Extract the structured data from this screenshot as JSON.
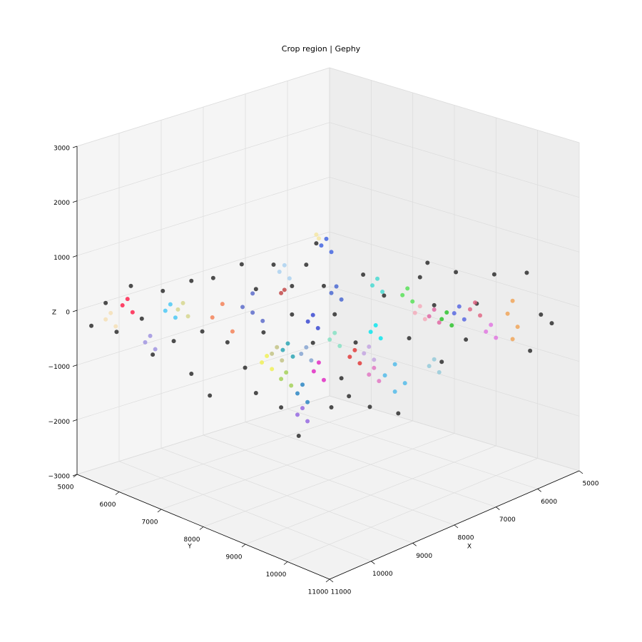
{
  "chart_data": {
    "type": "scatter3d",
    "title": "Crop region | Gephy",
    "xlabel": "X",
    "ylabel": "Y",
    "zlabel": "Z",
    "xlim": [
      5000,
      11000
    ],
    "ylim": [
      5000,
      11000
    ],
    "zlim": [
      -3000,
      3000
    ],
    "xticks": [
      5000,
      6000,
      7000,
      8000,
      9000,
      10000,
      11000
    ],
    "yticks": [
      5000,
      6000,
      7000,
      8000,
      9000,
      10000,
      11000
    ],
    "zticks": [
      {
        "value": -3000,
        "label": "−3000"
      },
      {
        "value": -2000,
        "label": "−2000"
      },
      {
        "value": -1000,
        "label": "−1000"
      },
      0,
      1000,
      2000,
      3000
    ],
    "grid": true,
    "series": [
      {
        "color": "#222222",
        "x": [
          10830,
          10660,
          10530,
          10360,
          10230,
          10100,
          9980,
          9850,
          9640,
          9640,
          9510,
          9420,
          9380,
          9210,
          9040,
          9000,
          8870,
          8780,
          8660,
          8570,
          8440,
          8360,
          8270,
          8190,
          8150,
          8060,
          7970,
          7850,
          7760,
          7680,
          7590,
          7510,
          7340,
          7170,
          7040,
          6910,
          6820,
          6740,
          6650,
          6480,
          6360,
          6230,
          6020,
          5630,
          5590,
          5460,
          5330,
          8870,
          8440,
          7930
        ],
        "y": [
          5170,
          5340,
          5470,
          5640,
          5770,
          5900,
          6020,
          6150,
          6360,
          6360,
          6490,
          6580,
          6620,
          6790,
          6960,
          7000,
          7130,
          7220,
          7340,
          7430,
          7560,
          7640,
          7730,
          7810,
          7850,
          7940,
          8030,
          8150,
          8240,
          8320,
          8410,
          8490,
          8660,
          8830,
          8960,
          9090,
          9180,
          9260,
          9350,
          9520,
          9640,
          9770,
          9980,
          10370,
          10410,
          10540,
          10670,
          7130,
          7560,
          8070
        ],
        "z": [
          -270,
          160,
          -360,
          490,
          -100,
          -750,
          420,
          -490,
          620,
          -1080,
          -300,
          -1470,
          680,
          -490,
          940,
          -950,
          -1410,
          -300,
          940,
          -1670,
          550,
          -2190,
          940,
          -490,
          1330,
          550,
          -1670,
          -1140,
          -1470,
          -490,
          750,
          -1670,
          360,
          -1800,
          -430,
          680,
          940,
          160,
          -880,
          750,
          -490,
          160,
          680,
          680,
          -750,
          -100,
          -270,
          490,
          30,
          30
        ]
      },
      {
        "color": "#f5deb3",
        "x": [
          10600,
          10660,
          10540
        ],
        "y": [
          5400,
          5340,
          5460
        ],
        "z": [
          -20,
          -140,
          -260
        ]
      },
      {
        "color": "#ff1744",
        "x": [
          10400,
          10460,
          10340
        ],
        "y": [
          5600,
          5540,
          5660
        ],
        "z": [
          250,
          130,
          10
        ]
      },
      {
        "color": "#9b8fe0",
        "x": [
          10130,
          10190,
          10070
        ],
        "y": [
          5870,
          5810,
          5930
        ],
        "z": [
          -410,
          -530,
          -650
        ]
      },
      {
        "color": "#42c6f5",
        "x": [
          9890,
          9950,
          9830
        ],
        "y": [
          6110,
          6050,
          6170
        ],
        "z": [
          180,
          60,
          -60
        ]
      },
      {
        "color": "#d4d48a",
        "x": [
          9740,
          9800,
          9680
        ],
        "y": [
          6260,
          6200,
          6320
        ],
        "z": [
          210,
          90,
          -30
        ]
      },
      {
        "color": "#f47c50",
        "x": [
          9270,
          9390,
          9150
        ],
        "y": [
          6730,
          6610,
          6850
        ],
        "z": [
          210,
          -40,
          -290
        ]
      },
      {
        "color": "#5464c8",
        "x": [
          8910,
          9030,
          8790,
          8910
        ],
        "y": [
          7090,
          6970,
          7210,
          7090
        ],
        "z": [
          410,
          160,
          -90,
          60
        ]
      },
      {
        "color": "#a8d0f0",
        "x": [
          8530,
          8590,
          8470
        ],
        "y": [
          7470,
          7410,
          7530
        ],
        "z": [
          930,
          810,
          690
        ]
      },
      {
        "color": "#c04040",
        "x": [
          8530,
          8570
        ],
        "y": [
          7470,
          7430
        ],
        "z": [
          480,
          420
        ]
      },
      {
        "color": "#3a5ee0",
        "x": [
          8030,
          8090,
          7970
        ],
        "y": [
          7970,
          7910,
          8030
        ],
        "z": [
          1410,
          1290,
          1170
        ]
      },
      {
        "color": "#f5e6a0",
        "x": [
          8150,
          8120
        ],
        "y": [
          7850,
          7880
        ],
        "z": [
          1490,
          1420
        ]
      },
      {
        "color": "#4060d0",
        "x": [
          7910,
          7970,
          7850
        ],
        "y": [
          8090,
          8030,
          8150
        ],
        "z": [
          540,
          420,
          300
        ]
      },
      {
        "color": "#40d8d0",
        "x": [
          7420,
          7480,
          7360
        ],
        "y": [
          8580,
          8520,
          8640
        ],
        "z": [
          670,
          550,
          430
        ]
      },
      {
        "color": "#50e050",
        "x": [
          7060,
          7120,
          7000
        ],
        "y": [
          8940,
          8880,
          9000
        ],
        "z": [
          480,
          360,
          240
        ]
      },
      {
        "color": "#f4a8b8",
        "x": [
          6910,
          6970,
          6850
        ],
        "y": [
          9090,
          9030,
          9150
        ],
        "z": [
          150,
          30,
          -90
        ]
      },
      {
        "color": "#e060a0",
        "x": [
          6740,
          6800,
          6680
        ],
        "y": [
          9260,
          9200,
          9320
        ],
        "z": [
          80,
          -40,
          -160
        ]
      },
      {
        "color": "#22c022",
        "x": [
          6590,
          6650,
          6530
        ],
        "y": [
          9410,
          9350,
          9470
        ],
        "z": [
          20,
          -100,
          -220
        ]
      },
      {
        "color": "#5060e0",
        "x": [
          6440,
          6500,
          6380
        ],
        "y": [
          9560,
          9500,
          9620
        ],
        "z": [
          120,
          0,
          -120
        ]
      },
      {
        "color": "#e06080",
        "x": [
          6250,
          6310,
          6190
        ],
        "y": [
          9750,
          9690,
          9810
        ],
        "z": [
          180,
          60,
          -60
        ]
      },
      {
        "color": "#e070e0",
        "x": [
          6060,
          6120,
          6000
        ],
        "y": [
          9940,
          9880,
          10000
        ],
        "z": [
          -240,
          -360,
          -480
        ]
      },
      {
        "color": "#f0a050",
        "x": [
          5800,
          5860,
          5740,
          5800
        ],
        "y": [
          10200,
          10140,
          10260,
          10200
        ],
        "z": [
          180,
          -50,
          -300,
          -520
        ]
      },
      {
        "color": "#90c8d8",
        "x": [
          6740,
          6800,
          6680
        ],
        "y": [
          9260,
          9200,
          9320
        ],
        "z": [
          -830,
          -950,
          -1070
        ]
      },
      {
        "color": "#4ab8e8",
        "x": [
          7210,
          7330,
          7090,
          7210
        ],
        "y": [
          8790,
          8670,
          8910,
          8790
        ],
        "z": [
          -900,
          -1100,
          -1250,
          -1400
        ]
      },
      {
        "color": "#e070c0",
        "x": [
          7460,
          7520,
          7400
        ],
        "y": [
          8540,
          8480,
          8600
        ],
        "z": [
          -960,
          -1080,
          -1200
        ]
      },
      {
        "color": "#c0a0e0",
        "x": [
          7520,
          7580,
          7460
        ],
        "y": [
          8480,
          8420,
          8540
        ],
        "z": [
          -570,
          -690,
          -810
        ]
      },
      {
        "color": "#00e5ee",
        "x": [
          7440,
          7500,
          7380
        ],
        "y": [
          8560,
          8500,
          8620
        ],
        "z": [
          -180,
          -300,
          -420
        ]
      },
      {
        "color": "#e03030",
        "x": [
          7690,
          7750,
          7630
        ],
        "y": [
          8310,
          8250,
          8370
        ],
        "z": [
          -630,
          -750,
          -870
        ]
      },
      {
        "color": "#80e0c0",
        "x": [
          7930,
          7990,
          7870
        ],
        "y": [
          8070,
          8010,
          8130
        ],
        "z": [
          -310,
          -430,
          -550
        ]
      },
      {
        "color": "#e020c0",
        "x": [
          8120,
          8180,
          8060
        ],
        "y": [
          7880,
          7820,
          7940
        ],
        "z": [
          -850,
          -1010,
          -1170
        ]
      },
      {
        "color": "#80a0d0",
        "x": [
          8270,
          8330,
          8210
        ],
        "y": [
          7730,
          7670,
          7790
        ],
        "z": [
          -570,
          -690,
          -810
        ]
      },
      {
        "color": "#2080c0",
        "x": [
          8320,
          8380,
          8260
        ],
        "y": [
          7690,
          7630,
          7750
        ],
        "z": [
          -1250,
          -1410,
          -1570
        ]
      },
      {
        "color": "#20a0b0",
        "x": [
          8490,
          8550,
          8430
        ],
        "y": [
          7510,
          7450,
          7570
        ],
        "z": [
          -500,
          -620,
          -740
        ]
      },
      {
        "color": "#c0c080",
        "x": [
          8620,
          8680,
          8560
        ],
        "y": [
          7380,
          7320,
          7440
        ],
        "z": [
          -570,
          -690,
          -810
        ]
      },
      {
        "color": "#f0f050",
        "x": [
          8740,
          8800,
          8680
        ],
        "y": [
          7260,
          7200,
          7320
        ],
        "z": [
          -730,
          -850,
          -970
        ]
      },
      {
        "color": "#a0d050",
        "x": [
          8510,
          8570,
          8450
        ],
        "y": [
          7490,
          7430,
          7550
        ],
        "z": [
          -1030,
          -1150,
          -1270
        ]
      },
      {
        "color": "#3040d0",
        "x": [
          8190,
          8250,
          8130
        ],
        "y": [
          7810,
          7750,
          7870
        ],
        "z": [
          20,
          -100,
          -220
        ]
      },
      {
        "color": "#9060e0",
        "x": [
          8320,
          8380,
          8260
        ],
        "y": [
          7690,
          7630,
          7750
        ],
        "z": [
          -1680,
          -1800,
          -1920
        ]
      }
    ]
  }
}
